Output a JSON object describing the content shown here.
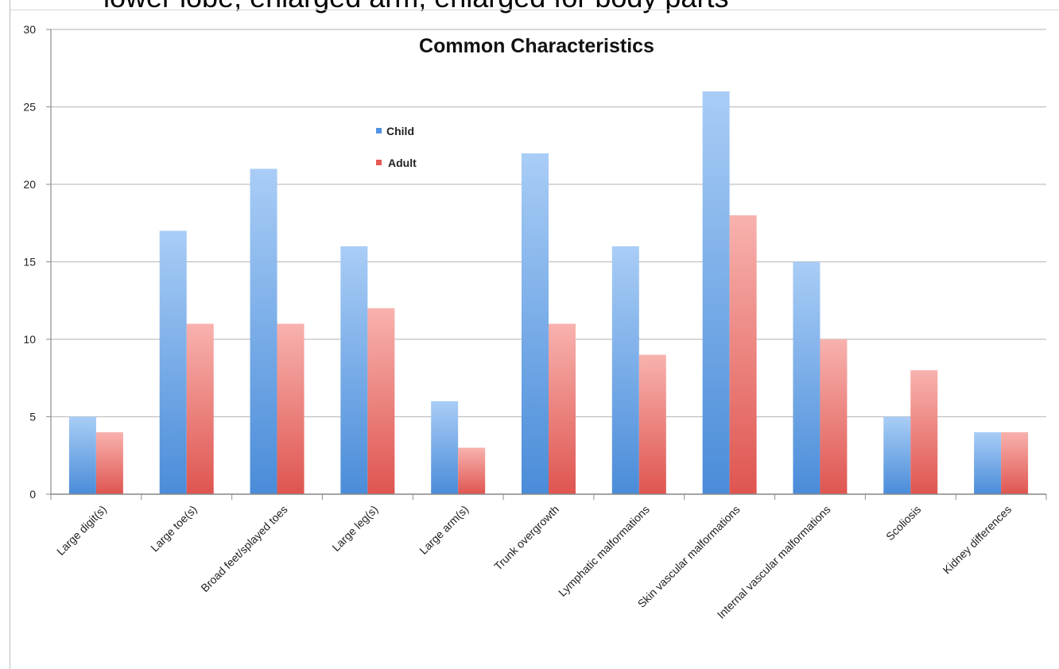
{
  "cropped_header_text": "lower lobe, enlarged arm, enlarged for body parts",
  "colors": {
    "child": "#5b9be0",
    "adult": "#e4605c",
    "grid": "#c0c0c0",
    "axis": "#8c8c8c"
  },
  "chart_data": {
    "type": "bar",
    "title": "Common Characteristics",
    "xlabel": "",
    "ylabel": "",
    "ylim": [
      0,
      30
    ],
    "yticks": [
      0,
      5,
      10,
      15,
      20,
      25,
      30
    ],
    "grid": true,
    "legend_position": "top-left-center",
    "categories": [
      "Large digit(s)",
      "Large toe(s)",
      "Broad feet/splayed toes",
      "Large leg(s)",
      "Large arm(s)",
      "Trunk overgrowth",
      "Lymphatic malformations",
      "Skin vascular malformations",
      "Internal vascular malformations",
      "Scoliosis",
      "Kidney differences"
    ],
    "series": [
      {
        "name": "Child",
        "values": [
          5,
          17,
          21,
          16,
          6,
          22,
          16,
          26,
          15,
          5,
          4
        ]
      },
      {
        "name": "Adult",
        "values": [
          4,
          11,
          11,
          12,
          3,
          11,
          9,
          18,
          10,
          8,
          4
        ]
      }
    ]
  }
}
